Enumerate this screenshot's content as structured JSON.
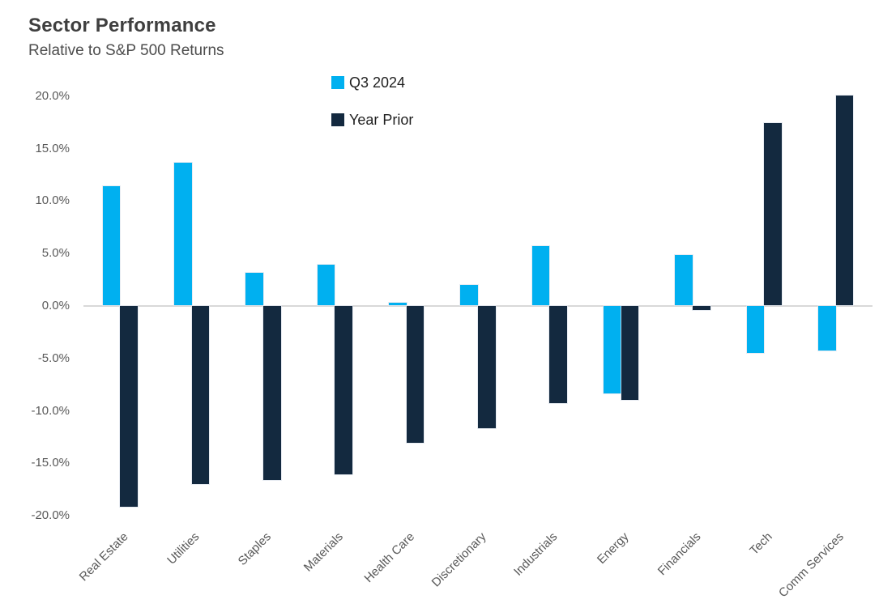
{
  "header": {
    "title": "Sector Performance",
    "subtitle": "Relative to S&P 500 Returns"
  },
  "colors": {
    "series_q3_2024": "#00B0F0",
    "series_year_prior": "#13293F",
    "title_text": "#3F3F3F",
    "axis_text": "#595959",
    "gridline": "#D9D9D9",
    "background": "#FFFFFF"
  },
  "chart_data": {
    "type": "bar",
    "title": "Sector Performance",
    "subtitle": "Relative to S&P 500 Returns",
    "categories": [
      "Real Estate",
      "Utilities",
      "Staples",
      "Materials",
      "Health Care",
      "Discretionary",
      "Industrials",
      "Energy",
      "Financials",
      "Tech",
      "Comm Services"
    ],
    "series": [
      {
        "name": "Q3 2024",
        "color": "#00B0F0",
        "values": [
          11.4,
          13.6,
          3.1,
          3.9,
          0.3,
          2.0,
          5.7,
          -8.4,
          4.8,
          -4.5,
          -4.3
        ]
      },
      {
        "name": "Year Prior",
        "color": "#13293F",
        "values": [
          -19.2,
          -17.0,
          -16.6,
          -16.1,
          -13.1,
          -11.7,
          -9.3,
          -9.0,
          -0.4,
          17.4,
          20.0
        ]
      }
    ],
    "xlabel": "",
    "ylabel": "",
    "ylim": [
      -20,
      20
    ],
    "yticks": [
      {
        "value": 20,
        "label": "20.0%"
      },
      {
        "value": 15,
        "label": "15.0%"
      },
      {
        "value": 10,
        "label": "10.0%"
      },
      {
        "value": 5,
        "label": "5.0%"
      },
      {
        "value": 0,
        "label": "0.0%"
      },
      {
        "value": -5,
        "label": "-5.0%"
      },
      {
        "value": -10,
        "label": "-10.0%"
      },
      {
        "value": -15,
        "label": "-15.0%"
      },
      {
        "value": -20,
        "label": "-20.0%"
      }
    ],
    "grid": "zero-line-only",
    "legend_position": "top-center",
    "x_tick_rotation_deg": -45
  }
}
